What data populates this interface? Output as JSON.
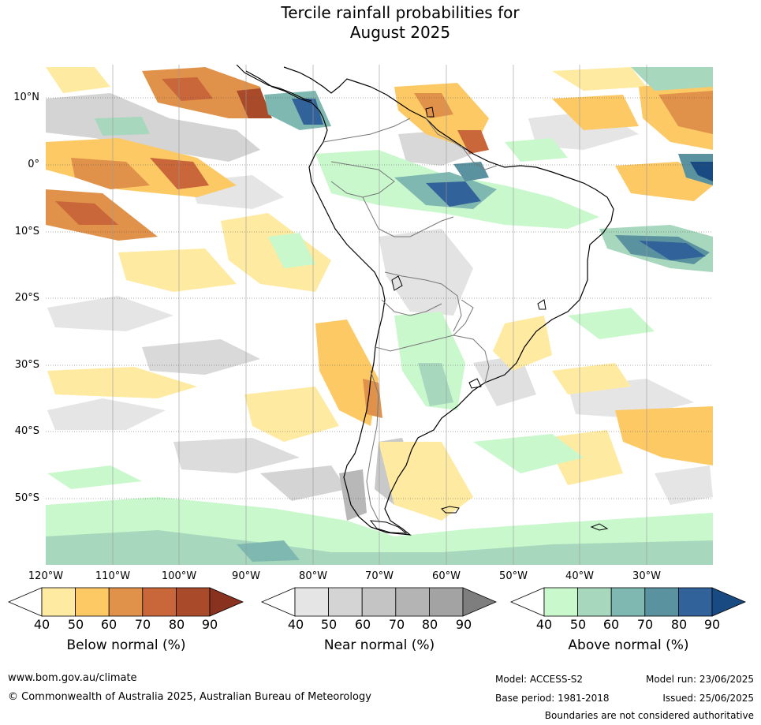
{
  "title": {
    "line1": "Tercile rainfall probabilities for",
    "line2": "August 2025"
  },
  "map": {
    "latitude_labels": [
      "10°N",
      "0°",
      "10°S",
      "20°S",
      "30°S",
      "40°S",
      "50°S"
    ],
    "longitude_labels": [
      "120°W",
      "110°W",
      "100°W",
      "90°W",
      "80°W",
      "70°W",
      "60°W",
      "50°W",
      "40°W",
      "30°W"
    ],
    "land_region": "South America"
  },
  "legend": {
    "colorbars": [
      {
        "title": "Below normal (%)",
        "ticks": [
          "40",
          "50",
          "60",
          "70",
          "80",
          "90"
        ],
        "colors": [
          "#ffffff",
          "#feeaa0",
          "#fdc965",
          "#e0924a",
          "#c9663a",
          "#a94a2a",
          "#8a3220"
        ]
      },
      {
        "title": "Near normal (%)",
        "ticks": [
          "40",
          "50",
          "60",
          "70",
          "80",
          "90"
        ],
        "colors": [
          "#ffffff",
          "#e5e5e5",
          "#d4d4d4",
          "#c4c4c4",
          "#b4b4b4",
          "#a3a3a3",
          "#7e7e7e"
        ]
      },
      {
        "title": "Above normal (%)",
        "ticks": [
          "40",
          "50",
          "60",
          "70",
          "80",
          "90"
        ],
        "colors": [
          "#ffffff",
          "#c8f8cc",
          "#a7d8bd",
          "#7fb8b0",
          "#5a92a0",
          "#31629a",
          "#1a4a82"
        ]
      }
    ]
  },
  "footer": {
    "website": "www.bom.gov.au/climate",
    "copyright": "© Commonwealth of Australia 2025, Australian Bureau of Meteorology",
    "model": "Model: ACCESS-S2",
    "model_run": "Model run: 23/06/2025",
    "base_period": "Base period: 1981-2018",
    "issued": "Issued: 25/06/2025",
    "disclaimer": "Boundaries are not considered authoritative"
  }
}
